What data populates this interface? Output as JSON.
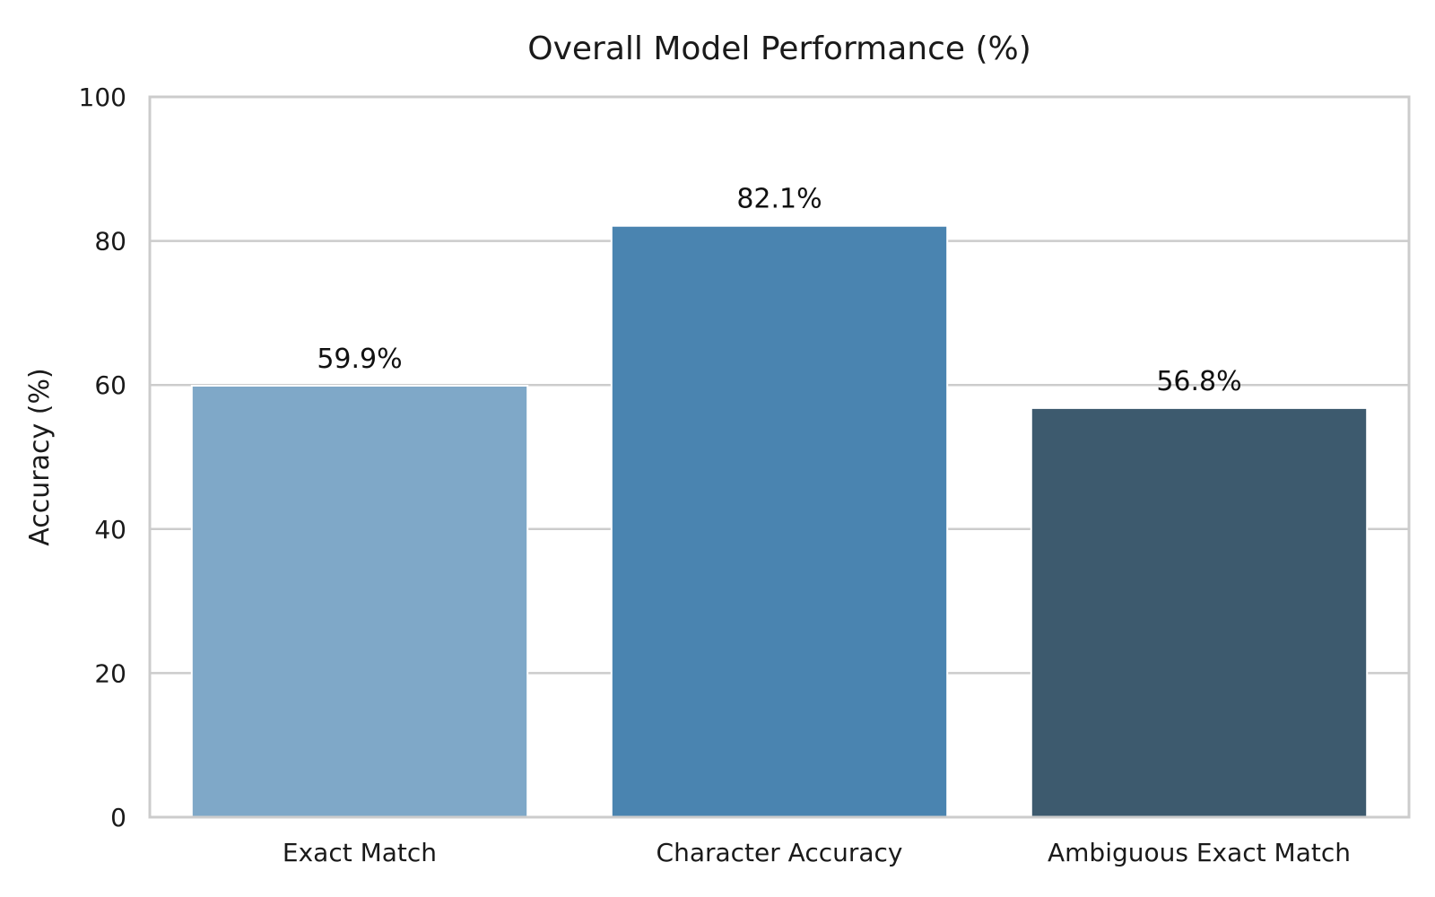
{
  "chart_data": {
    "type": "bar",
    "title": "Overall Model Performance (%)",
    "xlabel": "",
    "ylabel": "Accuracy (%)",
    "ylim": [
      0,
      100
    ],
    "yticks": [
      0,
      20,
      40,
      60,
      80,
      100
    ],
    "grid": true,
    "legend": "none",
    "categories": [
      "Exact Match",
      "Character Accuracy",
      "Ambiguous Exact Match"
    ],
    "values": [
      59.9,
      82.1,
      56.8
    ],
    "data_labels": [
      "59.9%",
      "82.1%",
      "56.8%"
    ],
    "colors": [
      "#7fa8c8",
      "#4a84b0",
      "#3d5a6e"
    ]
  }
}
